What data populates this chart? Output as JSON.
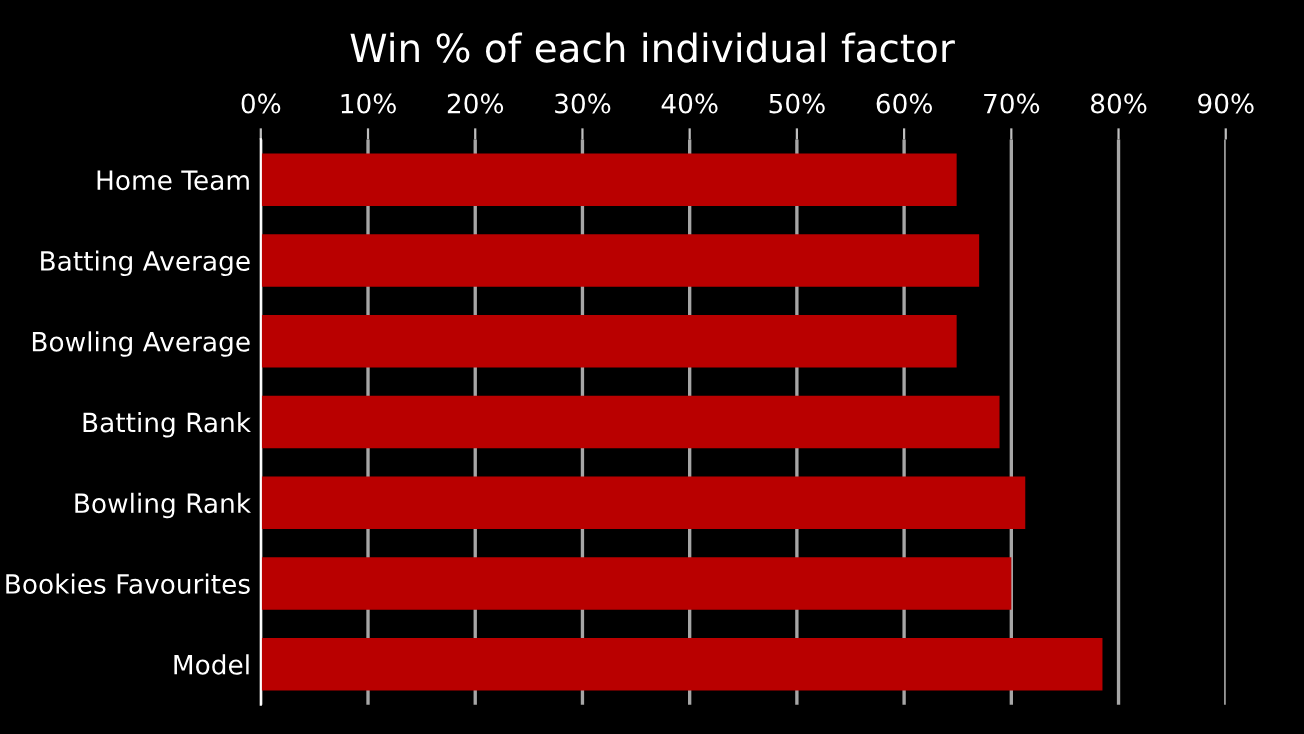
{
  "chart_data": {
    "type": "bar",
    "orientation": "horizontal",
    "title": "Win % of each individual factor",
    "categories": [
      "Home Team",
      "Batting Average",
      "Bowling Average",
      "Batting Rank",
      "Bowling Rank",
      "Bookies Favourites",
      "Model"
    ],
    "values": [
      64.9,
      67.0,
      64.9,
      68.9,
      71.3,
      70.0,
      78.5
    ],
    "color": "#b90000",
    "xlim": [
      0,
      90
    ],
    "xticks": [
      {
        "value": 0,
        "label": "0%"
      },
      {
        "value": 10,
        "label": "10%"
      },
      {
        "value": 20,
        "label": "20%"
      },
      {
        "value": 30,
        "label": "30%"
      },
      {
        "value": 40,
        "label": "40%"
      },
      {
        "value": 50,
        "label": "50%"
      },
      {
        "value": 60,
        "label": "60%"
      },
      {
        "value": 70,
        "label": "70%"
      },
      {
        "value": 80,
        "label": "80%"
      },
      {
        "value": 90,
        "label": "90%"
      }
    ],
    "grid": "x"
  }
}
